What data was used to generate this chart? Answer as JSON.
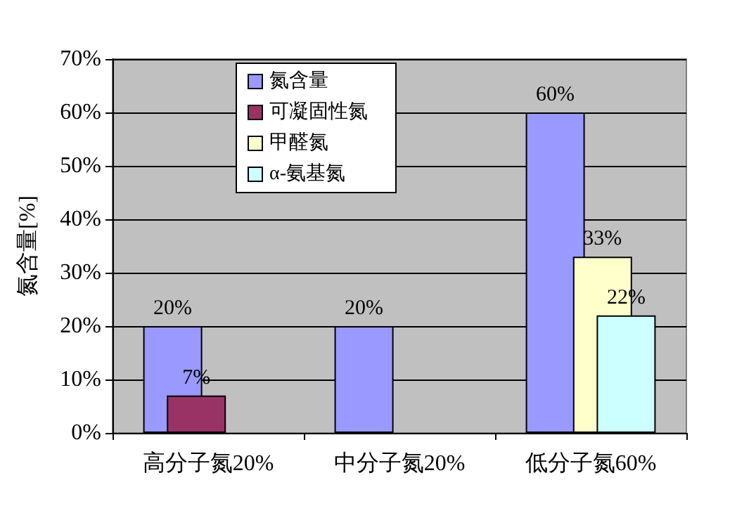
{
  "chart_data": {
    "type": "bar",
    "ylabel": "氮含量[%]",
    "categories": [
      "高分子氮20%",
      "中分子氮20%",
      "低分子氮60%"
    ],
    "series": [
      {
        "name": "氮含量",
        "color": "#9999ff",
        "values": [
          20,
          20,
          60
        ],
        "value_labels": [
          "20%",
          "20%",
          "60%"
        ]
      },
      {
        "name": "可凝固性氮",
        "color": "#993366",
        "values": [
          7,
          null,
          null
        ],
        "value_labels": [
          "7%",
          null,
          null
        ]
      },
      {
        "name": "甲醛氮",
        "color": "#ffffcc",
        "values": [
          null,
          null,
          33
        ],
        "value_labels": [
          null,
          null,
          "33%"
        ]
      },
      {
        "name": "α-氨基氮",
        "color": "#ccffff",
        "values": [
          null,
          null,
          22
        ],
        "value_labels": [
          null,
          null,
          "22%"
        ]
      }
    ],
    "ylim": [
      0,
      70
    ],
    "yticks": [
      {
        "value": 0,
        "label": "0%"
      },
      {
        "value": 10,
        "label": "10%"
      },
      {
        "value": 20,
        "label": "20%"
      },
      {
        "value": 30,
        "label": "30%"
      },
      {
        "value": 40,
        "label": "40%"
      },
      {
        "value": 50,
        "label": "50%"
      },
      {
        "value": 60,
        "label": "60%"
      },
      {
        "value": 70,
        "label": "70%"
      }
    ],
    "grid": "y",
    "legend": "top"
  }
}
